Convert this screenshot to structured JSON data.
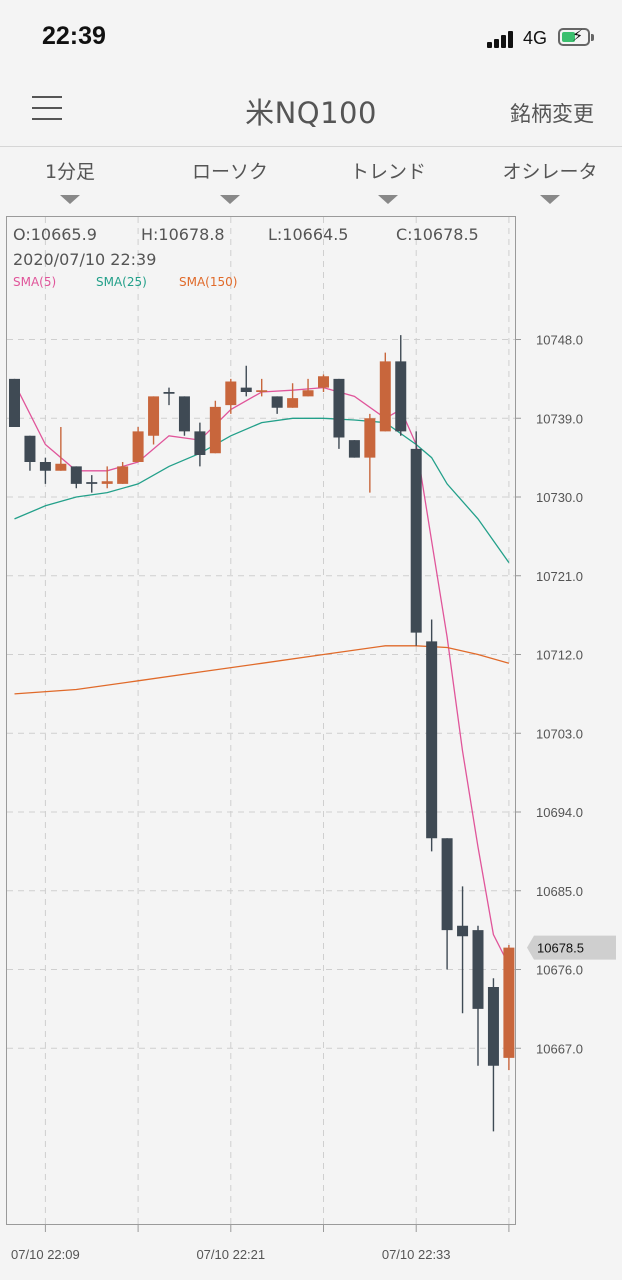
{
  "status_bar": {
    "time": "22:39",
    "network": "4G"
  },
  "navbar": {
    "title": "米NQ100",
    "change_symbol": "銘柄変更"
  },
  "tabs": [
    {
      "label": "1分足"
    },
    {
      "label": "ローソク"
    },
    {
      "label": "トレンド"
    },
    {
      "label": "オシレータ"
    }
  ],
  "info": {
    "open": "O:10665.9",
    "high": "H:10678.8",
    "low": "L:10664.5",
    "close": "C:10678.5",
    "datetime": "2020/07/10 22:39"
  },
  "legend": [
    {
      "label": "SMA(5)",
      "color": "#e0559a"
    },
    {
      "label": "SMA(25)",
      "color": "#23a08a"
    },
    {
      "label": "SMA(150)",
      "color": "#e06a2a"
    }
  ],
  "colors": {
    "up": "#c8663c",
    "down": "#3f4a54",
    "grid": "#cfcfcf"
  },
  "chart_data": {
    "type": "candlestick",
    "ylim": [
      10655.0,
      10757.0
    ],
    "y_ticks": [
      "10748.0",
      "10739.0",
      "10730.0",
      "10721.0",
      "10712.0",
      "10703.0",
      "10694.0",
      "10685.0",
      "10676.0",
      "10667.0"
    ],
    "x_ticks": [
      {
        "label": "07/10 22:09",
        "index": 2
      },
      {
        "label": "",
        "index": 8
      },
      {
        "label": "07/10 22:21",
        "index": 14
      },
      {
        "label": "",
        "index": 20
      },
      {
        "label": "07/10 22:33",
        "index": 26
      },
      {
        "label": "",
        "index": 32
      }
    ],
    "current_price": "10678.5",
    "candles": [
      {
        "t": "22:07",
        "o": 10743.5,
        "h": 10743.5,
        "l": 10738.0,
        "c": 10738.0
      },
      {
        "t": "22:08",
        "o": 10737.0,
        "h": 10737.0,
        "l": 10733.0,
        "c": 10734.0
      },
      {
        "t": "22:09",
        "o": 10734.0,
        "h": 10734.5,
        "l": 10731.5,
        "c": 10733.0
      },
      {
        "t": "22:10",
        "o": 10733.0,
        "h": 10738.0,
        "l": 10733.0,
        "c": 10733.8
      },
      {
        "t": "22:11",
        "o": 10733.5,
        "h": 10733.5,
        "l": 10731.0,
        "c": 10731.5
      },
      {
        "t": "22:12",
        "o": 10731.7,
        "h": 10732.5,
        "l": 10730.5,
        "c": 10731.5
      },
      {
        "t": "22:13",
        "o": 10731.5,
        "h": 10733.5,
        "l": 10731.0,
        "c": 10731.8
      },
      {
        "t": "22:14",
        "o": 10731.5,
        "h": 10734.0,
        "l": 10731.5,
        "c": 10733.5
      },
      {
        "t": "22:15",
        "o": 10734.0,
        "h": 10738.0,
        "l": 10734.0,
        "c": 10737.5
      },
      {
        "t": "22:16",
        "o": 10737.0,
        "h": 10741.5,
        "l": 10736.0,
        "c": 10741.5
      },
      {
        "t": "22:17",
        "o": 10742.0,
        "h": 10742.5,
        "l": 10740.5,
        "c": 10741.8
      },
      {
        "t": "22:18",
        "o": 10741.5,
        "h": 10741.5,
        "l": 10737.0,
        "c": 10737.5
      },
      {
        "t": "22:19",
        "o": 10737.5,
        "h": 10738.5,
        "l": 10733.5,
        "c": 10734.8
      },
      {
        "t": "22:20",
        "o": 10735.0,
        "h": 10741.0,
        "l": 10735.0,
        "c": 10740.3
      },
      {
        "t": "22:21",
        "o": 10740.5,
        "h": 10743.5,
        "l": 10739.5,
        "c": 10743.2
      },
      {
        "t": "22:22",
        "o": 10742.5,
        "h": 10745.0,
        "l": 10741.5,
        "c": 10742.0
      },
      {
        "t": "22:23",
        "o": 10742.0,
        "h": 10743.5,
        "l": 10741.5,
        "c": 10742.2
      },
      {
        "t": "22:24",
        "o": 10741.5,
        "h": 10741.5,
        "l": 10739.5,
        "c": 10740.2
      },
      {
        "t": "22:25",
        "o": 10740.2,
        "h": 10743.0,
        "l": 10740.2,
        "c": 10741.3
      },
      {
        "t": "22:26",
        "o": 10741.5,
        "h": 10743.5,
        "l": 10741.5,
        "c": 10742.2
      },
      {
        "t": "22:27",
        "o": 10742.5,
        "h": 10744.0,
        "l": 10742.0,
        "c": 10743.8
      },
      {
        "t": "22:28",
        "o": 10743.5,
        "h": 10743.5,
        "l": 10735.5,
        "c": 10736.8
      },
      {
        "t": "22:29",
        "o": 10736.5,
        "h": 10736.5,
        "l": 10734.5,
        "c": 10734.5
      },
      {
        "t": "22:30",
        "o": 10734.5,
        "h": 10739.5,
        "l": 10730.5,
        "c": 10739.0
      },
      {
        "t": "22:31",
        "o": 10737.5,
        "h": 10746.5,
        "l": 10737.5,
        "c": 10745.5
      },
      {
        "t": "22:32",
        "o": 10745.5,
        "h": 10748.5,
        "l": 10737.0,
        "c": 10737.5
      },
      {
        "t": "22:33",
        "o": 10735.5,
        "h": 10737.5,
        "l": 10713.0,
        "c": 10714.5
      },
      {
        "t": "22:34",
        "o": 10713.5,
        "h": 10716.0,
        "l": 10689.5,
        "c": 10691.0
      },
      {
        "t": "22:35",
        "o": 10691.0,
        "h": 10691.0,
        "l": 10676.0,
        "c": 10680.5
      },
      {
        "t": "22:36",
        "o": 10681.0,
        "h": 10685.5,
        "l": 10671.0,
        "c": 10679.8
      },
      {
        "t": "22:37",
        "o": 10680.5,
        "h": 10681.0,
        "l": 10665.0,
        "c": 10671.5
      },
      {
        "t": "22:38",
        "o": 10674.0,
        "h": 10675.0,
        "l": 10657.5,
        "c": 10665.0
      },
      {
        "t": "22:39",
        "o": 10665.9,
        "h": 10678.8,
        "l": 10664.5,
        "c": 10678.5
      }
    ],
    "series": [
      {
        "name": "SMA(5)",
        "x": [
          0,
          2,
          4,
          6,
          8,
          10,
          12,
          14,
          16,
          18,
          20,
          22,
          24,
          25,
          26,
          27,
          28,
          29,
          30,
          31,
          32
        ],
        "values": [
          10743.0,
          10736.0,
          10733.0,
          10733.0,
          10734.0,
          10737.0,
          10736.5,
          10740.0,
          10742.0,
          10742.2,
          10742.5,
          10741.5,
          10739.0,
          10740.0,
          10736.0,
          10725.0,
          10714.0,
          10701.0,
          10690.0,
          10680.0,
          10676.5
        ]
      },
      {
        "name": "SMA(25)",
        "x": [
          0,
          2,
          4,
          6,
          8,
          10,
          12,
          14,
          16,
          18,
          20,
          22,
          24,
          26,
          27,
          28,
          30,
          32
        ],
        "values": [
          10727.5,
          10729.0,
          10730.0,
          10730.5,
          10731.5,
          10733.5,
          10735.0,
          10737.0,
          10738.5,
          10739.0,
          10739.0,
          10738.8,
          10738.5,
          10736.0,
          10734.5,
          10731.5,
          10727.5,
          10722.5
        ]
      },
      {
        "name": "SMA(150)",
        "x": [
          0,
          4,
          8,
          12,
          16,
          20,
          24,
          26,
          28,
          30,
          32
        ],
        "values": [
          10707.5,
          10708.0,
          10709.0,
          10710.0,
          10711.0,
          10712.0,
          10713.0,
          10713.0,
          10712.8,
          10712.0,
          10711.0
        ]
      }
    ]
  }
}
